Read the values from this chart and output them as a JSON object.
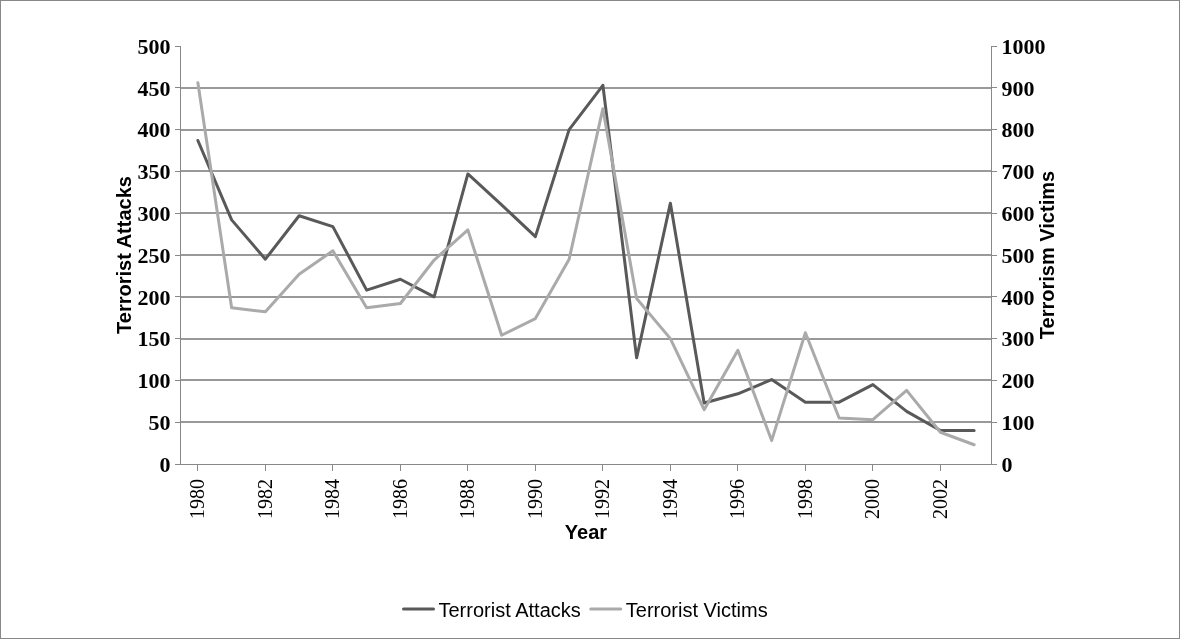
{
  "chart_data": {
    "type": "line",
    "xlabel": "Year",
    "ylabel": "Terrorist Attacks",
    "y2label": "Terrorism Victims",
    "categories": [
      "1980",
      null,
      "1982",
      null,
      "1984",
      null,
      "1986",
      null,
      "1988",
      null,
      "1990",
      null,
      "1992",
      null,
      "1994",
      null,
      "1996",
      null,
      "1998",
      null,
      "2000",
      null,
      "2002",
      null
    ],
    "series": [
      {
        "name": "Terrorist Attacks",
        "color": "#595959",
        "values": [
          387,
          292,
          245,
          297,
          284,
          208,
          221,
          200,
          347,
          310,
          272,
          400,
          453,
          127,
          312,
          73,
          84,
          101,
          74,
          74,
          95,
          63,
          40,
          40
        ]
      },
      {
        "name": "Terrorist Victims",
        "color": "#aaaaaa",
        "axis": "y2",
        "values": [
          912,
          374,
          364,
          454,
          510,
          374,
          384,
          488,
          560,
          308,
          348,
          490,
          850,
          396,
          300,
          130,
          272,
          56,
          314,
          110,
          106,
          176,
          76,
          46
        ]
      }
    ],
    "ylim": [
      0,
      500
    ],
    "yticks": [
      0,
      50,
      100,
      150,
      200,
      250,
      300,
      350,
      400,
      450,
      500
    ],
    "y2lim": [
      0,
      1000
    ],
    "y2ticks": [
      0,
      100,
      200,
      300,
      400,
      500,
      600,
      700,
      800,
      900,
      1000
    ],
    "grid": "y",
    "legend": "bottom",
    "marker": "none",
    "line_style": "solid"
  }
}
